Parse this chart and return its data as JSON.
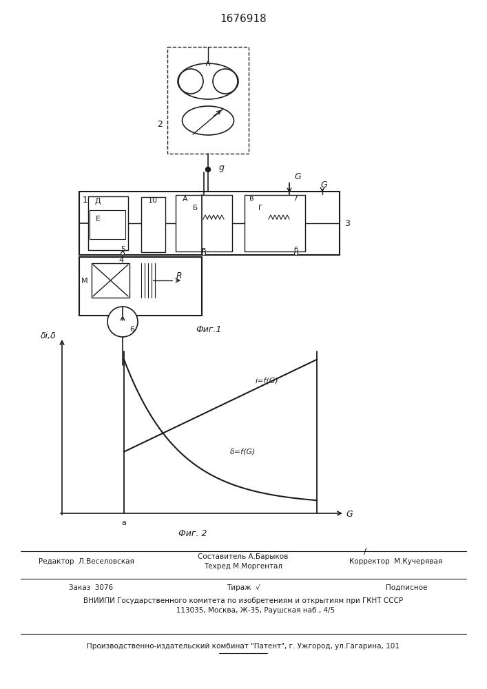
{
  "patent_number": "1676918",
  "fig1_caption": "Фиг.1",
  "fig2_caption": "Фиг. 2",
  "graph_ylabel": "δi,δ",
  "graph_xlabel": "G",
  "graph_x_label_a": "a",
  "curve1_label": "i=f(G)",
  "curve2_label": "δ=f(G)",
  "footer_editor": "Редактор  Л.Веселовская",
  "footer_compiler": "Составитель А.Барыков",
  "footer_tech": "Техред М.Моргентал",
  "footer_corrector": "Корректор  М.Кучерявая",
  "footer_order": "Заказ  3076",
  "footer_tirazh": "Тираж  √",
  "footer_podpisnoe": "Подписное",
  "footer_vniipи": "ВНИИПИ Государственного комитета по изобретениям и открытиям при ГКНТ СССР",
  "footer_address": "113035, Москва, Ж-35, Раушская наб., 4/5",
  "footer_patent": "Производственно-издательский комбинат \"Патент\", г. Ужгород, ул.Гагарина, 101",
  "bg_color": "#ffffff",
  "line_color": "#1a1a1a"
}
